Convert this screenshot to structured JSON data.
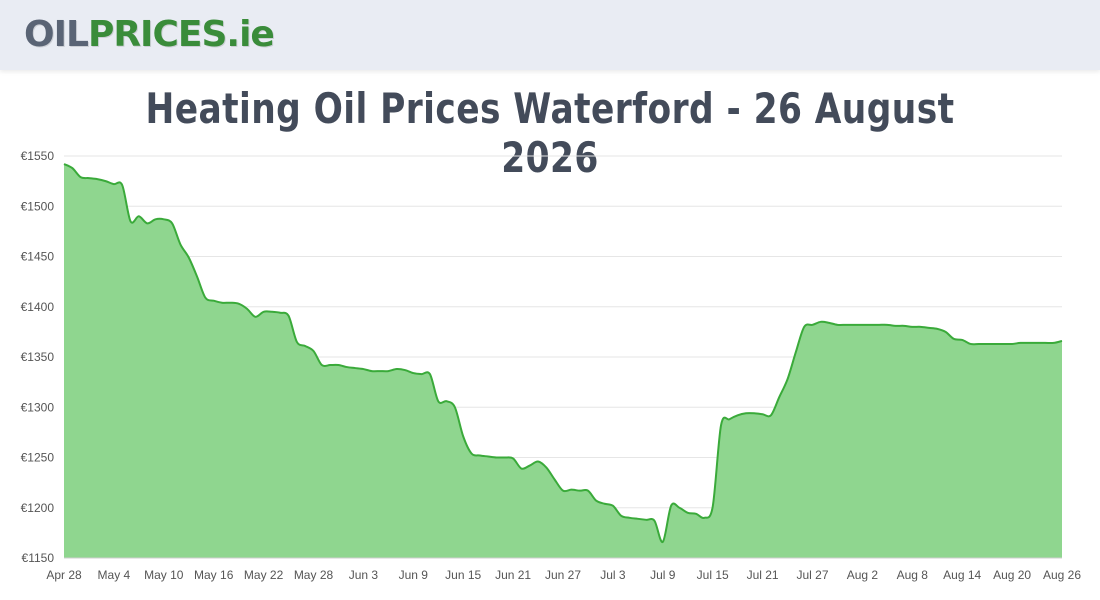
{
  "header": {
    "logo_part1": "OIL",
    "logo_part2": "PRICES",
    "logo_part3": ".ie"
  },
  "colors": {
    "header_bg": "#e9ecf3",
    "logo_oil": "#5a6475",
    "logo_prices": "#3a8c3a",
    "area_fill": "#8fd68f",
    "line": "#3aaa3a",
    "title": "#434b5a"
  },
  "chart_data": {
    "type": "area",
    "title": "Heating Oil Prices Waterford - 26 August 2026",
    "xlabel": "",
    "ylabel": "",
    "ylim": [
      1150,
      1550
    ],
    "ytick_values": [
      1150,
      1200,
      1250,
      1300,
      1350,
      1400,
      1450,
      1500,
      1550
    ],
    "ytick_labels": [
      "€1150",
      "€1200",
      "€1250",
      "€1300",
      "€1350",
      "€1400",
      "€1450",
      "€1500",
      "€1550"
    ],
    "xtick_labels": [
      "Apr 28",
      "May 4",
      "May 10",
      "May 16",
      "May 22",
      "May 28",
      "Jun 3",
      "Jun 9",
      "Jun 15",
      "Jun 21",
      "Jun 27",
      "Jul 3",
      "Jul 9",
      "Jul 15",
      "Jul 21",
      "Jul 27",
      "Aug 2",
      "Aug 8",
      "Aug 14",
      "Aug 20",
      "Aug 26"
    ],
    "grid": true,
    "series": [
      {
        "values": [
          1542,
          1538,
          1529,
          1528,
          1527,
          1525,
          1522,
          1521,
          1485,
          1490,
          1483,
          1487,
          1487,
          1483,
          1462,
          1449,
          1430,
          1409,
          1406,
          1404,
          1404,
          1403,
          1398,
          1390,
          1395,
          1395,
          1394,
          1391,
          1365,
          1361,
          1356,
          1342,
          1342,
          1342,
          1340,
          1339,
          1338,
          1336,
          1336,
          1336,
          1338,
          1337,
          1334,
          1333,
          1333,
          1306,
          1306,
          1300,
          1271,
          1254,
          1252,
          1251,
          1250,
          1250,
          1249,
          1239,
          1242,
          1246,
          1240,
          1228,
          1217,
          1218,
          1217,
          1217,
          1207,
          1204,
          1202,
          1192,
          1190,
          1189,
          1188,
          1187,
          1166,
          1202,
          1200,
          1195,
          1194,
          1190,
          1201,
          1282,
          1288,
          1292,
          1294,
          1294,
          1293,
          1292,
          1310,
          1328,
          1355,
          1380,
          1382,
          1385,
          1384,
          1382,
          1382,
          1382,
          1382,
          1382,
          1382,
          1382,
          1381,
          1381,
          1380,
          1380,
          1379,
          1378,
          1375,
          1368,
          1367,
          1363,
          1363,
          1363,
          1363,
          1363,
          1363,
          1364,
          1364,
          1364,
          1364,
          1364,
          1366
        ]
      }
    ]
  }
}
